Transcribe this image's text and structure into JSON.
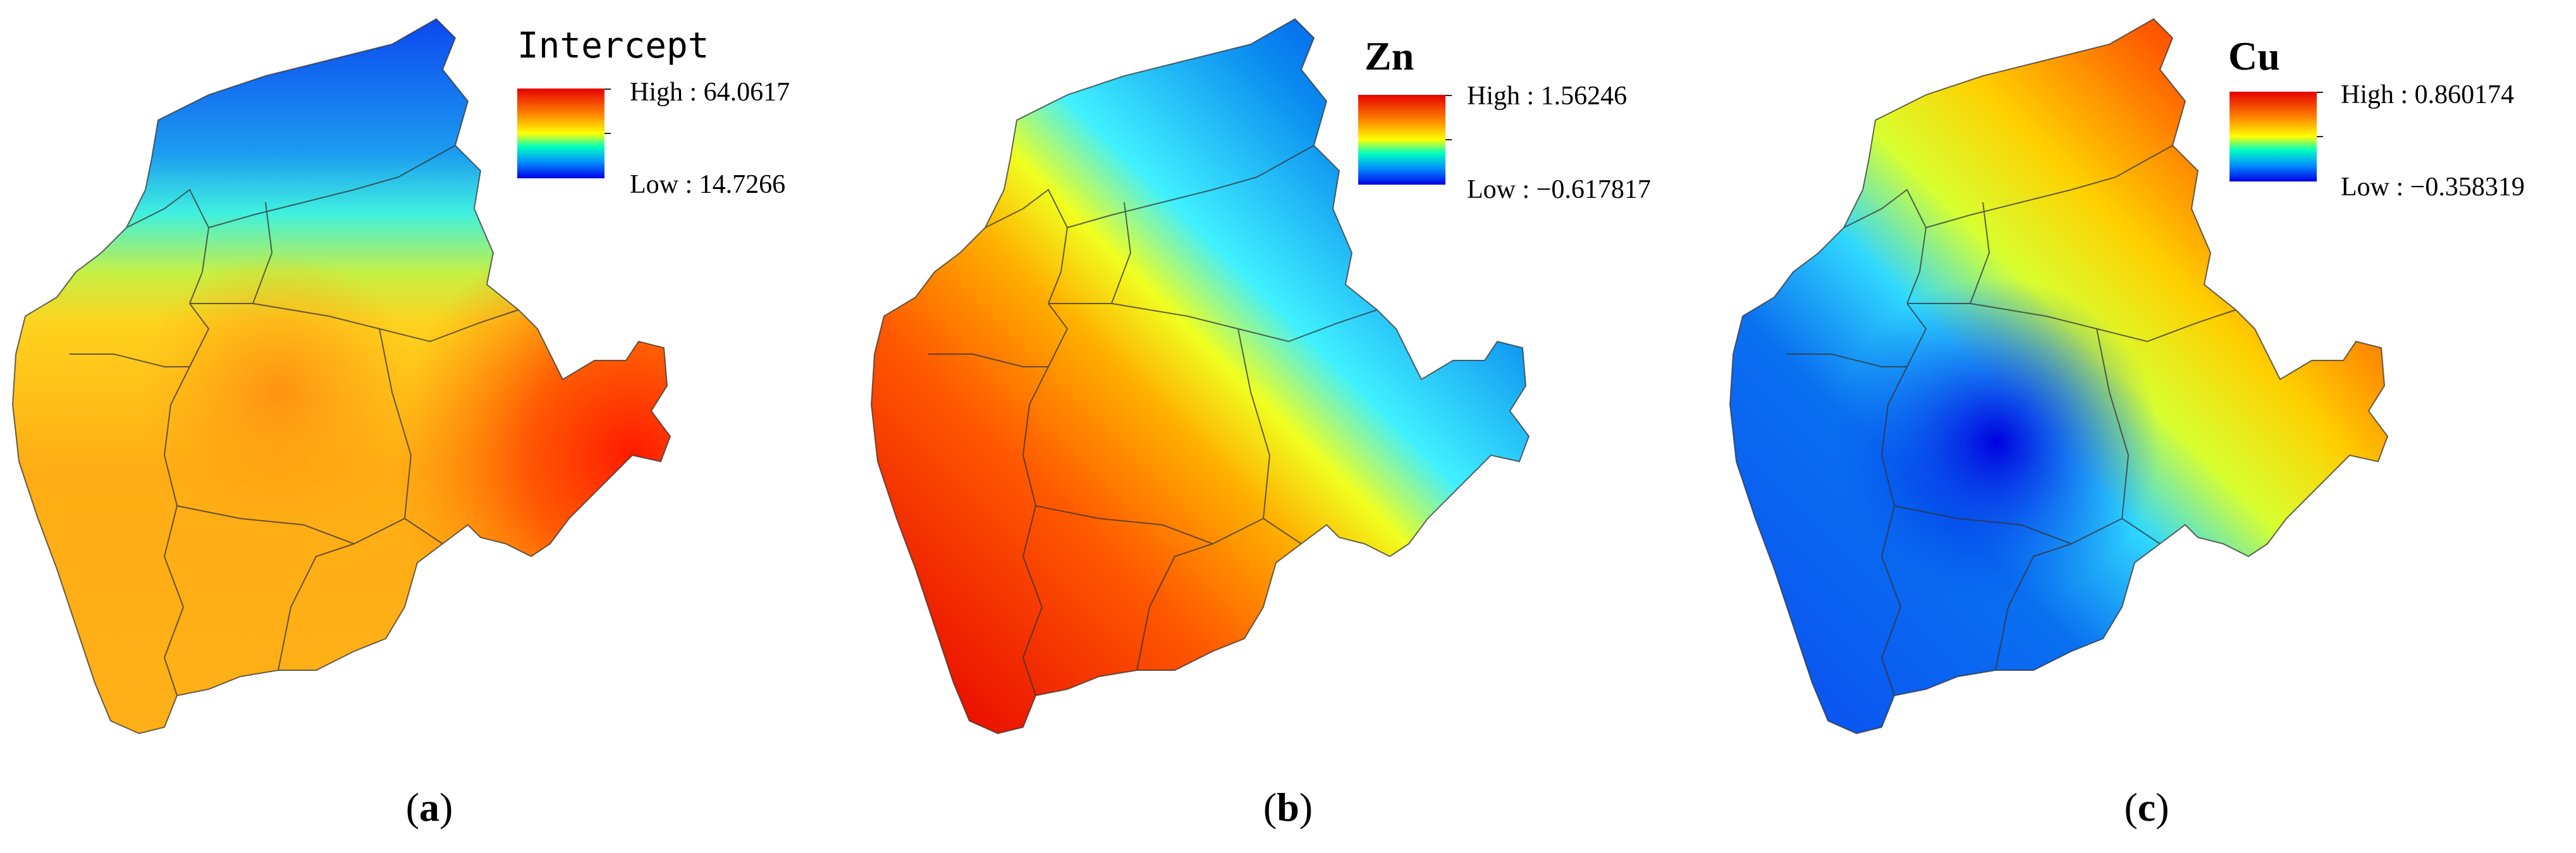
{
  "panels": [
    {
      "id": "a",
      "legend_title": "Intercept",
      "high_label": "High : 64.0617",
      "low_label": "Low : 14.7266",
      "caption_open": "(",
      "caption_letter": "a",
      "caption_close": ")"
    },
    {
      "id": "b",
      "legend_title": "Zn",
      "high_label": "High : 1.56246",
      "low_label": "Low : −0.617817",
      "caption_open": "(",
      "caption_letter": "b",
      "caption_close": ")"
    },
    {
      "id": "c",
      "legend_title": "Cu",
      "high_label": "High : 0.860174",
      "low_label": "Low : −0.358319",
      "caption_open": "(",
      "caption_letter": "c",
      "caption_close": ")"
    }
  ],
  "color_ramp": [
    "#e60000",
    "#ff7f00",
    "#ffff00",
    "#00ffff",
    "#0066ff",
    "#0000e6"
  ]
}
